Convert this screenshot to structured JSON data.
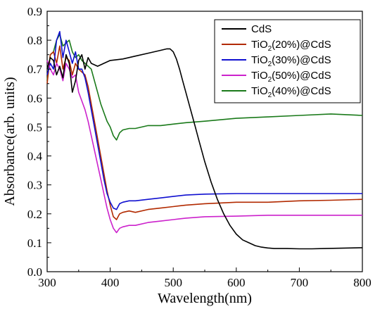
{
  "chart_data": {
    "type": "line",
    "xlabel": "Wavelength(nm)",
    "ylabel": "Absorbance(arb. units)",
    "xlim": [
      300,
      800
    ],
    "ylim": [
      0.0,
      0.9
    ],
    "xticks": [
      300,
      400,
      500,
      600,
      700,
      800
    ],
    "yticks": [
      0.0,
      0.1,
      0.2,
      0.3,
      0.4,
      0.5,
      0.6,
      0.7,
      0.8,
      0.9
    ],
    "legend_position": "top-right",
    "series": [
      {
        "name": "CdS",
        "color": "#000000",
        "x": [
          300,
          305,
          310,
          315,
          320,
          325,
          330,
          335,
          340,
          345,
          350,
          355,
          360,
          365,
          370,
          380,
          390,
          400,
          420,
          440,
          460,
          480,
          490,
          495,
          500,
          505,
          510,
          515,
          520,
          525,
          530,
          535,
          540,
          545,
          550,
          560,
          570,
          580,
          590,
          600,
          610,
          620,
          630,
          640,
          650,
          660,
          680,
          700,
          720,
          740,
          760,
          780,
          800
        ],
        "y": [
          0.7,
          0.74,
          0.73,
          0.68,
          0.71,
          0.67,
          0.75,
          0.72,
          0.62,
          0.66,
          0.73,
          0.75,
          0.7,
          0.74,
          0.72,
          0.71,
          0.72,
          0.73,
          0.735,
          0.745,
          0.755,
          0.765,
          0.77,
          0.77,
          0.76,
          0.735,
          0.7,
          0.66,
          0.62,
          0.58,
          0.54,
          0.5,
          0.46,
          0.42,
          0.38,
          0.31,
          0.25,
          0.2,
          0.16,
          0.13,
          0.11,
          0.1,
          0.09,
          0.085,
          0.082,
          0.08,
          0.08,
          0.079,
          0.079,
          0.08,
          0.081,
          0.082,
          0.083
        ]
      },
      {
        "name": "TiO2(20%)@CdS",
        "color": "#b22a00",
        "x": [
          300,
          305,
          310,
          315,
          320,
          325,
          330,
          335,
          340,
          345,
          350,
          355,
          360,
          365,
          370,
          375,
          380,
          385,
          390,
          395,
          400,
          405,
          410,
          415,
          420,
          430,
          440,
          460,
          480,
          500,
          520,
          550,
          600,
          650,
          700,
          750,
          800
        ],
        "y": [
          0.65,
          0.75,
          0.76,
          0.72,
          0.78,
          0.7,
          0.74,
          0.73,
          0.68,
          0.72,
          0.7,
          0.69,
          0.68,
          0.64,
          0.58,
          0.52,
          0.46,
          0.4,
          0.34,
          0.28,
          0.23,
          0.19,
          0.18,
          0.2,
          0.205,
          0.21,
          0.205,
          0.215,
          0.22,
          0.225,
          0.23,
          0.235,
          0.24,
          0.24,
          0.245,
          0.247,
          0.25
        ]
      },
      {
        "name": "TiO2(30%)@CdS",
        "color": "#1010d0",
        "x": [
          300,
          305,
          310,
          315,
          320,
          325,
          330,
          335,
          340,
          345,
          350,
          355,
          360,
          365,
          370,
          375,
          380,
          385,
          390,
          395,
          400,
          405,
          410,
          415,
          420,
          430,
          440,
          460,
          480,
          500,
          520,
          550,
          600,
          650,
          700,
          750,
          800
        ],
        "y": [
          0.68,
          0.72,
          0.7,
          0.8,
          0.83,
          0.74,
          0.8,
          0.76,
          0.72,
          0.76,
          0.7,
          0.7,
          0.67,
          0.62,
          0.56,
          0.5,
          0.44,
          0.38,
          0.32,
          0.27,
          0.24,
          0.22,
          0.215,
          0.235,
          0.24,
          0.245,
          0.245,
          0.25,
          0.255,
          0.26,
          0.265,
          0.268,
          0.27,
          0.27,
          0.27,
          0.27,
          0.27
        ]
      },
      {
        "name": "TiO2(50%)@CdS",
        "color": "#cc22cc",
        "x": [
          300,
          305,
          310,
          315,
          320,
          325,
          330,
          335,
          340,
          345,
          350,
          355,
          360,
          365,
          370,
          375,
          380,
          385,
          390,
          395,
          400,
          405,
          410,
          415,
          420,
          430,
          440,
          460,
          480,
          500,
          520,
          550,
          600,
          650,
          700,
          750,
          800
        ],
        "y": [
          0.73,
          0.7,
          0.68,
          0.72,
          0.7,
          0.66,
          0.72,
          0.7,
          0.67,
          0.68,
          0.62,
          0.59,
          0.56,
          0.52,
          0.47,
          0.42,
          0.37,
          0.32,
          0.27,
          0.22,
          0.18,
          0.15,
          0.135,
          0.15,
          0.155,
          0.16,
          0.16,
          0.17,
          0.175,
          0.18,
          0.185,
          0.19,
          0.192,
          0.195,
          0.195,
          0.195,
          0.195
        ]
      },
      {
        "name": "TiO2(40%)@CdS",
        "color": "#1a7a1a",
        "x": [
          300,
          305,
          310,
          315,
          320,
          325,
          330,
          335,
          340,
          345,
          350,
          355,
          360,
          365,
          370,
          375,
          380,
          385,
          390,
          395,
          400,
          405,
          410,
          415,
          420,
          430,
          440,
          460,
          480,
          500,
          520,
          550,
          600,
          650,
          700,
          750,
          800
        ],
        "y": [
          0.66,
          0.75,
          0.76,
          0.8,
          0.82,
          0.78,
          0.79,
          0.8,
          0.76,
          0.74,
          0.75,
          0.73,
          0.72,
          0.71,
          0.7,
          0.66,
          0.62,
          0.58,
          0.55,
          0.52,
          0.5,
          0.47,
          0.455,
          0.48,
          0.49,
          0.495,
          0.495,
          0.505,
          0.505,
          0.51,
          0.515,
          0.52,
          0.53,
          0.535,
          0.54,
          0.545,
          0.54
        ]
      }
    ]
  },
  "legend": {
    "items": [
      {
        "prefix": "CdS",
        "sub": "",
        "suffix": ""
      },
      {
        "prefix": "TiO",
        "sub": "2",
        "suffix": "(20%)@CdS"
      },
      {
        "prefix": "TiO",
        "sub": "2",
        "suffix": "(30%)@CdS"
      },
      {
        "prefix": "TiO",
        "sub": "2",
        "suffix": "(50%)@CdS"
      },
      {
        "prefix": "TiO",
        "sub": "2",
        "suffix": "(40%)@CdS"
      }
    ]
  }
}
